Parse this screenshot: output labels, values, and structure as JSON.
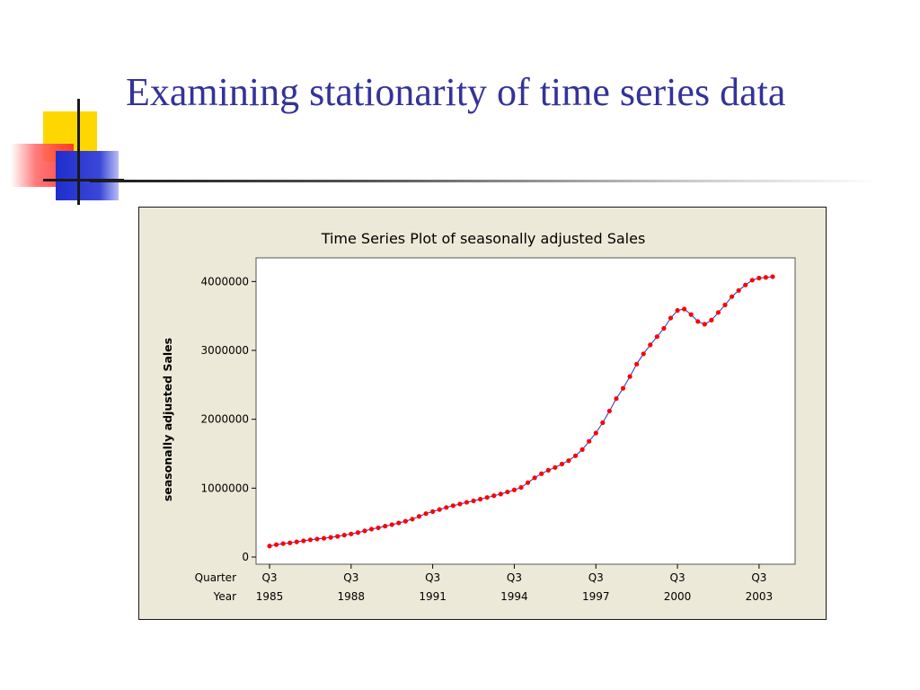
{
  "slide": {
    "title": "Examining stationarity of time series data"
  },
  "colors": {
    "title": "#33339a",
    "chart_background": "#ece9d8",
    "plot_background": "#ffffff",
    "series_line": "#2233cc",
    "series_marker": "#ff0000"
  },
  "chart_data": {
    "type": "line",
    "title": "Time Series Plot of seasonally adjusted Sales",
    "ylabel": "seasonally adjusted Sales",
    "xlabel": "",
    "ylim": [
      0,
      4200000
    ],
    "yticks": [
      0,
      1000000,
      2000000,
      3000000,
      4000000
    ],
    "ytick_labels": [
      "0",
      "1000000",
      "2000000",
      "3000000",
      "4000000"
    ],
    "x_axis_row_labels": [
      "Quarter",
      "Year"
    ],
    "x_ticks": [
      {
        "index": 0,
        "quarter": "Q3",
        "year": "1985"
      },
      {
        "index": 12,
        "quarter": "Q3",
        "year": "1988"
      },
      {
        "index": 24,
        "quarter": "Q3",
        "year": "1991"
      },
      {
        "index": 36,
        "quarter": "Q3",
        "year": "1994"
      },
      {
        "index": 48,
        "quarter": "Q3",
        "year": "1997"
      },
      {
        "index": 60,
        "quarter": "Q3",
        "year": "2000"
      },
      {
        "index": 72,
        "quarter": "Q3",
        "year": "2003"
      }
    ],
    "legend": "none",
    "grid": false,
    "series": [
      {
        "marker": "circle",
        "values": [
          160000,
          180000,
          195000,
          205000,
          220000,
          235000,
          250000,
          262000,
          272000,
          285000,
          300000,
          318000,
          335000,
          355000,
          380000,
          405000,
          425000,
          448000,
          470000,
          495000,
          520000,
          550000,
          590000,
          630000,
          660000,
          690000,
          720000,
          745000,
          770000,
          795000,
          815000,
          840000,
          865000,
          890000,
          915000,
          945000,
          975000,
          1010000,
          1080000,
          1150000,
          1210000,
          1260000,
          1300000,
          1350000,
          1400000,
          1470000,
          1560000,
          1680000,
          1800000,
          1950000,
          2120000,
          2300000,
          2450000,
          2620000,
          2800000,
          2950000,
          3080000,
          3200000,
          3320000,
          3470000,
          3580000,
          3600000,
          3520000,
          3420000,
          3380000,
          3440000,
          3550000,
          3660000,
          3780000,
          3870000,
          3950000,
          4020000,
          4050000,
          4060000,
          4070000
        ]
      }
    ]
  }
}
